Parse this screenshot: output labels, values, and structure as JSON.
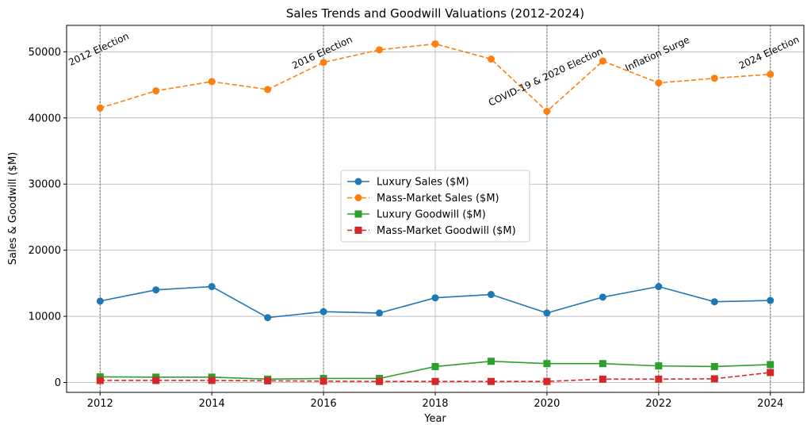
{
  "chart_data": {
    "type": "line",
    "title": "Sales Trends and Goodwill Valuations (2012-2024)",
    "xlabel": "Year",
    "ylabel": "Sales & Goodwill ($M)",
    "x": [
      2012,
      2013,
      2014,
      2015,
      2016,
      2017,
      2018,
      2019,
      2020,
      2021,
      2022,
      2023,
      2024
    ],
    "xlim": [
      2011.4,
      2024.6
    ],
    "ylim": [
      -1500,
      54000
    ],
    "xticks": [
      2012,
      2014,
      2016,
      2018,
      2020,
      2022,
      2024
    ],
    "yticks": [
      0,
      10000,
      20000,
      30000,
      40000,
      50000
    ],
    "grid": true,
    "legend_position": "center",
    "series": [
      {
        "name": "Luxury Sales ($M)",
        "color": "#1f77b4",
        "dash": "solid",
        "marker": "circle",
        "values": [
          12300,
          14000,
          14500,
          9800,
          10700,
          10500,
          12800,
          13300,
          10500,
          12900,
          14500,
          12200,
          12400
        ]
      },
      {
        "name": "Mass-Market Sales ($M)",
        "color": "#ff7f0e",
        "dash": "dashed",
        "marker": "circle",
        "values": [
          41500,
          44100,
          45500,
          44300,
          48400,
          50300,
          51200,
          48900,
          41000,
          48600,
          45300,
          46000,
          46600
        ]
      },
      {
        "name": "Luxury Goodwill ($M)",
        "color": "#2ca02c",
        "dash": "solid",
        "marker": "square",
        "values": [
          850,
          800,
          800,
          500,
          600,
          600,
          2400,
          3200,
          2850,
          2850,
          2500,
          2400,
          2700
        ]
      },
      {
        "name": "Mass-Market Goodwill ($M)",
        "color": "#d62728",
        "dash": "dashed",
        "marker": "square",
        "values": [
          300,
          300,
          300,
          250,
          200,
          150,
          150,
          150,
          150,
          500,
          500,
          550,
          1500
        ]
      }
    ],
    "events": [
      {
        "x": 2012,
        "label": "2012 Election",
        "y": 49000
      },
      {
        "x": 2016,
        "label": "2016 Election",
        "y": 48500
      },
      {
        "x": 2020,
        "label": "COVID-19 & 2020 Election",
        "y": 44800
      },
      {
        "x": 2022,
        "label": "Inflation Surge",
        "y": 48300
      },
      {
        "x": 2024,
        "label": "2024 Election",
        "y": 48500
      }
    ]
  }
}
